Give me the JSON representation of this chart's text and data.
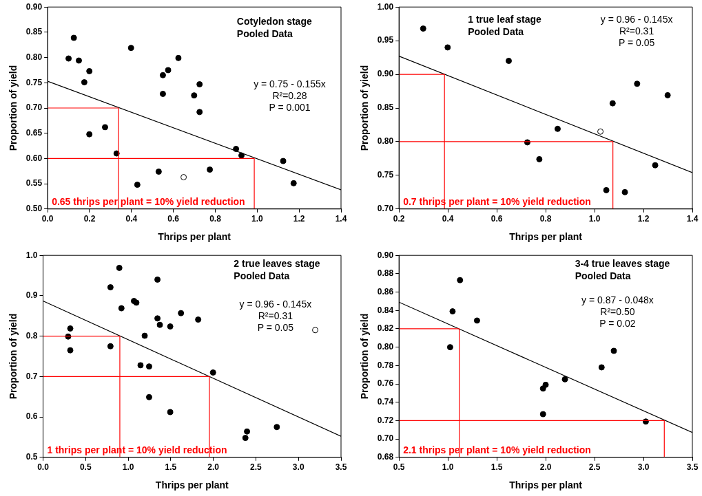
{
  "chart_data": [
    {
      "type": "scatter",
      "title": "Cotyledon stage",
      "subtitle": "Pooled Data",
      "xlabel": "Thrips per plant",
      "ylabel": "Proportion of yield",
      "xlim": [
        0,
        1.4
      ],
      "ylim": [
        0.5,
        0.9
      ],
      "xticks": [
        {
          "value": 0,
          "label": "0.0"
        },
        0.2,
        0.4,
        0.6,
        0.8,
        {
          "value": 1,
          "label": "1.0"
        },
        1.2,
        1.4
      ],
      "yticks": [
        {
          "value": 0.5,
          "label": "0.50"
        },
        0.55,
        {
          "value": 0.6,
          "label": "0.60"
        },
        0.65,
        {
          "value": 0.7,
          "label": "0.70"
        },
        0.75,
        {
          "value": 0.8,
          "label": "0.80"
        },
        0.85,
        {
          "value": 0.9,
          "label": "0.90"
        }
      ],
      "grid": false,
      "legend": false,
      "series": [
        {
          "type": "line",
          "color": "#ff0000",
          "x": [
            0,
            0.338,
            0.338
          ],
          "values": [
            0.7,
            0.7,
            0.5
          ]
        },
        {
          "type": "line",
          "color": "#ff0000",
          "x": [
            0,
            0.986,
            0.986
          ],
          "values": [
            0.6,
            0.6,
            0.5
          ]
        },
        {
          "type": "line",
          "color": "#000000",
          "x": [
            0,
            1.4
          ],
          "values": [
            0.753,
            0.538
          ]
        },
        {
          "marker": "circle",
          "color": "#000000",
          "x": [
            0.1,
            0.125,
            0.149,
            0.199,
            0.175,
            0.398,
            0.199,
            0.274,
            0.329,
            0.428,
            0.53,
            0.55,
            0.575,
            0.55,
            0.624,
            0.699,
            0.725,
            0.725,
            0.774,
            0.899,
            0.925,
            1.124,
            1.174
          ],
          "values": [
            0.798,
            0.839,
            0.794,
            0.773,
            0.751,
            0.819,
            0.648,
            0.662,
            0.61,
            0.548,
            0.574,
            0.765,
            0.775,
            0.728,
            0.799,
            0.725,
            0.747,
            0.692,
            0.578,
            0.619,
            0.606,
            0.595,
            0.551
          ]
        },
        {
          "marker": "circle",
          "color": "#ffffff",
          "x": [
            0.649
          ],
          "values": [
            0.563
          ]
        }
      ],
      "annotations": [
        "y = 0.75 - 0.155x",
        "R²=0.28",
        "P = 0.001",
        "0.65 thrips per plant = 10% yield reduction"
      ]
    },
    {
      "type": "scatter",
      "title": "1 true leaf stage",
      "subtitle": "Pooled Data",
      "xlabel": "Thrips per plant",
      "ylabel": "Proportion of yield",
      "xlim": [
        0.2,
        1.4
      ],
      "ylim": [
        0.7,
        1.0
      ],
      "xticks": [
        0.2,
        0.4,
        0.6,
        0.8,
        {
          "value": 1,
          "label": "1.0"
        },
        1.2,
        1.4
      ],
      "yticks": [
        {
          "value": 0.7,
          "label": "0.70"
        },
        0.75,
        {
          "value": 0.8,
          "label": "0.80"
        },
        0.85,
        {
          "value": 0.9,
          "label": "0.90"
        },
        0.95,
        {
          "value": 1,
          "label": "1.00"
        }
      ],
      "grid": false,
      "legend": false,
      "series": [
        {
          "type": "line",
          "color": "#ff0000",
          "x": [
            0.2,
            0.386,
            0.386
          ],
          "values": [
            0.9,
            0.9,
            0.7
          ]
        },
        {
          "type": "line",
          "color": "#ff0000",
          "x": [
            0.2,
            1.075,
            1.075
          ],
          "values": [
            0.8,
            0.8,
            0.7
          ]
        },
        {
          "type": "line",
          "color": "#000000",
          "x": [
            0.2,
            1.4
          ],
          "values": [
            0.927,
            0.754
          ]
        },
        {
          "marker": "circle",
          "color": "#000000",
          "x": [
            0.299,
            0.399,
            0.649,
            0.725,
            0.774,
            0.849,
            1.074,
            1.174,
            1.299,
            1.248,
            1.048,
            1.124
          ],
          "values": [
            0.968,
            0.94,
            0.92,
            0.799,
            0.774,
            0.819,
            0.857,
            0.886,
            0.869,
            0.765,
            0.728,
            0.725
          ]
        },
        {
          "marker": "circle",
          "color": "#ffffff",
          "x": [
            1.024
          ],
          "values": [
            0.815
          ]
        }
      ],
      "annotations": [
        "y = 0.96 - 0.145x",
        "R²=0.31",
        "P = 0.05",
        "0.7 thrips per plant = 10% yield reduction"
      ]
    },
    {
      "type": "scatter",
      "title": "2 true leaves stage",
      "subtitle": "Pooled Data",
      "xlabel": "Thrips per plant",
      "ylabel": "Proportion of yield",
      "xlim": [
        0,
        3.5
      ],
      "ylim": [
        0.5,
        1.0
      ],
      "xticks": [
        {
          "value": 0,
          "label": "0.0"
        },
        0.5,
        {
          "value": 1,
          "label": "1.0"
        },
        1.5,
        {
          "value": 2,
          "label": "2.0"
        },
        2.5,
        {
          "value": 3,
          "label": "3.0"
        },
        3.5
      ],
      "yticks": [
        0.5,
        0.6,
        0.7,
        0.8,
        0.9,
        {
          "value": 1,
          "label": "1.0"
        }
      ],
      "grid": false,
      "legend": false,
      "series": [
        {
          "type": "line",
          "color": "#ff0000",
          "x": [
            0,
            0.902,
            0.902
          ],
          "values": [
            0.8,
            0.8,
            0.5
          ]
        },
        {
          "type": "line",
          "color": "#ff0000",
          "x": [
            0,
            1.954,
            1.954
          ],
          "values": [
            0.7,
            0.7,
            0.5
          ]
        },
        {
          "type": "line",
          "color": "#000000",
          "x": [
            0,
            3.5
          ],
          "values": [
            0.887,
            0.552
          ]
        },
        {
          "marker": "circle",
          "color": "#000000",
          "x": [
            0.295,
            0.32,
            0.32,
            0.792,
            0.896,
            0.921,
            0.792,
            1.068,
            1.096,
            1.194,
            1.145,
            1.246,
            1.246,
            1.344,
            1.344,
            1.372,
            1.494,
            1.62,
            1.822,
            1.494,
            1.997,
            2.377,
            2.396,
            2.746
          ],
          "values": [
            0.799,
            0.819,
            0.765,
            0.921,
            0.969,
            0.869,
            0.775,
            0.887,
            0.883,
            0.801,
            0.728,
            0.725,
            0.649,
            0.94,
            0.844,
            0.828,
            0.824,
            0.857,
            0.841,
            0.612,
            0.71,
            0.548,
            0.564,
            0.575
          ]
        },
        {
          "marker": "circle",
          "color": "#ffffff",
          "x": [
            3.197
          ],
          "values": [
            0.815
          ]
        }
      ],
      "annotations": [
        "y = 0.96 - 0.145x",
        "R²=0.31",
        "P = 0.05",
        "1 thrips per plant = 10% yield reduction"
      ]
    },
    {
      "type": "scatter",
      "title": "3-4 true leaves stage",
      "subtitle": "Pooled Data",
      "xlabel": "Thrips per plant",
      "ylabel": "Proportion of yield",
      "xlim": [
        0.5,
        3.5
      ],
      "ylim": [
        0.68,
        0.9
      ],
      "xticks": [
        0.5,
        {
          "value": 1,
          "label": "1.0"
        },
        1.5,
        {
          "value": 2,
          "label": "2.0"
        },
        2.5,
        {
          "value": 3,
          "label": "3.0"
        },
        3.5
      ],
      "yticks": [
        0.68,
        {
          "value": 0.7,
          "label": "0.70"
        },
        0.72,
        0.74,
        0.76,
        0.78,
        {
          "value": 0.8,
          "label": "0.80"
        },
        0.82,
        0.84,
        0.86,
        0.88,
        {
          "value": 0.9,
          "label": "0.90"
        }
      ],
      "grid": false,
      "legend": false,
      "series": [
        {
          "type": "line",
          "color": "#ff0000",
          "x": [
            0.5,
            1.116,
            1.116
          ],
          "values": [
            0.82,
            0.82,
            0.68
          ]
        },
        {
          "type": "line",
          "color": "#ff0000",
          "x": [
            0.5,
            3.213,
            3.213
          ],
          "values": [
            0.72,
            0.72,
            0.68
          ]
        },
        {
          "type": "line",
          "color": "#000000",
          "x": [
            0.5,
            3.5
          ],
          "values": [
            0.849,
            0.707
          ]
        },
        {
          "marker": "circle",
          "color": "#000000",
          "x": [
            1.023,
            1.048,
            1.124,
            1.298,
            1.973,
            2.0,
            1.973,
            2.197,
            2.572,
            2.697,
            3.024
          ],
          "values": [
            0.8,
            0.839,
            0.873,
            0.829,
            0.755,
            0.759,
            0.727,
            0.765,
            0.778,
            0.796,
            0.719
          ]
        }
      ],
      "annotations": [
        "y = 0.87 - 0.048x",
        "R²=0.50",
        "P = 0.02",
        "2.1 thrips per plant = 10% yield reduction"
      ]
    }
  ]
}
